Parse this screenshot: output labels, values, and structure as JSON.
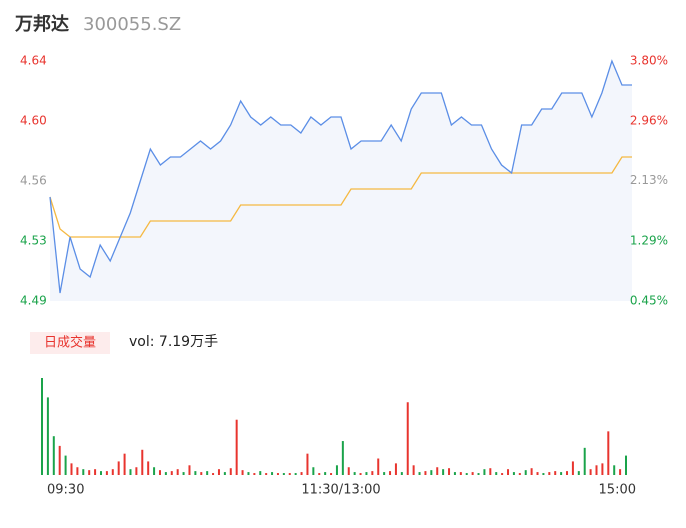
{
  "header": {
    "name": "万邦达",
    "code": "300055.SZ"
  },
  "chart_data": {
    "type": "line",
    "price_values": [
      4.555,
      4.495,
      4.53,
      4.51,
      4.505,
      4.525,
      4.515,
      4.53,
      4.545,
      4.565,
      4.585,
      4.575,
      4.58,
      4.58,
      4.585,
      4.59,
      4.585,
      4.59,
      4.6,
      4.615,
      4.605,
      4.6,
      4.605,
      4.6,
      4.6,
      4.595,
      4.605,
      4.6,
      4.605,
      4.605,
      4.585,
      4.59,
      4.59,
      4.59,
      4.6,
      4.59,
      4.61,
      4.62,
      4.62,
      4.62,
      4.6,
      4.605,
      4.6,
      4.6,
      4.585,
      4.575,
      4.57,
      4.6,
      4.6,
      4.61,
      4.61,
      4.62,
      4.62,
      4.62,
      4.605,
      4.62,
      4.64,
      4.625,
      4.625
    ],
    "avg_values": [
      4.555,
      4.535,
      4.53,
      4.53,
      4.53,
      4.53,
      4.53,
      4.53,
      4.53,
      4.53,
      4.54,
      4.54,
      4.54,
      4.54,
      4.54,
      4.54,
      4.54,
      4.54,
      4.54,
      4.55,
      4.55,
      4.55,
      4.55,
      4.55,
      4.55,
      4.55,
      4.55,
      4.55,
      4.55,
      4.55,
      4.56,
      4.56,
      4.56,
      4.56,
      4.56,
      4.56,
      4.56,
      4.57,
      4.57,
      4.57,
      4.57,
      4.57,
      4.57,
      4.57,
      4.57,
      4.57,
      4.57,
      4.57,
      4.57,
      4.57,
      4.57,
      4.57,
      4.57,
      4.57,
      4.57,
      4.57,
      4.57,
      4.58,
      4.58
    ],
    "price_color": "#5b8ee6",
    "avg_color": "#f5b942",
    "area_color": "#f3f6fc",
    "ylim": [
      4.49,
      4.64
    ],
    "yticks": [
      {
        "value": 4.64,
        "label": "4.64"
      },
      {
        "value": 4.6025,
        "label": "4.60"
      },
      {
        "value": 4.565,
        "label": "4.56"
      },
      {
        "value": 4.5275,
        "label": "4.53"
      },
      {
        "value": 4.49,
        "label": "4.49"
      }
    ],
    "ytick_colors": [
      "#e8342e",
      "#e8342e",
      "#999999",
      "#1aa34a",
      "#1aa34a"
    ],
    "y2lim": [
      0.45,
      3.8
    ],
    "y2ticks": [
      {
        "value": 3.8,
        "label": "3.80%"
      },
      {
        "value": 2.96,
        "label": "2.96%"
      },
      {
        "value": 2.13,
        "label": "2.13%"
      },
      {
        "value": 1.29,
        "label": "1.29%"
      },
      {
        "value": 0.45,
        "label": "0.45%"
      }
    ],
    "xlim": [
      0,
      240
    ],
    "xticks": [
      {
        "value": 0,
        "label": "09:30"
      },
      {
        "value": 120,
        "label": "11:30/13:00"
      },
      {
        "value": 240,
        "label": "15:00"
      }
    ],
    "volume_title": "日成交量",
    "volume_label": "vol: 7.19万手",
    "volume_ylim": [
      0,
      100
    ],
    "volume_values": [
      100,
      80,
      40,
      30,
      20,
      12,
      8,
      6,
      5,
      6,
      4,
      4,
      6,
      14,
      22,
      6,
      8,
      26,
      14,
      8,
      5,
      3,
      4,
      6,
      3,
      10,
      4,
      3,
      4,
      2,
      6,
      3,
      7,
      57,
      5,
      3,
      2,
      4,
      2,
      3,
      2,
      2,
      2,
      2,
      3,
      22,
      8,
      2,
      3,
      2,
      10,
      35,
      8,
      3,
      2,
      3,
      4,
      17,
      3,
      4,
      12,
      3,
      75,
      10,
      3,
      4,
      5,
      8,
      6,
      7,
      3,
      3,
      2,
      3,
      2,
      6,
      7,
      3,
      2,
      6,
      3,
      2,
      5,
      7,
      3,
      2,
      3,
      4,
      3,
      4,
      14,
      4,
      28,
      6,
      10,
      12,
      45,
      10,
      6,
      20
    ],
    "volume_colors": [
      "g",
      "g",
      "g",
      "r",
      "g",
      "r",
      "r",
      "g",
      "r",
      "r",
      "g",
      "r",
      "r",
      "r",
      "r",
      "g",
      "r",
      "r",
      "r",
      "g",
      "r",
      "g",
      "r",
      "r",
      "g",
      "r",
      "g",
      "r",
      "g",
      "r",
      "r",
      "g",
      "r",
      "r",
      "r",
      "g",
      "r",
      "g",
      "r",
      "g",
      "r",
      "g",
      "r",
      "g",
      "r",
      "r",
      "g",
      "r",
      "g",
      "r",
      "g",
      "g",
      "r",
      "g",
      "r",
      "g",
      "r",
      "r",
      "g",
      "r",
      "r",
      "g",
      "r",
      "r",
      "g",
      "r",
      "g",
      "r",
      "g",
      "r",
      "g",
      "r",
      "g",
      "r",
      "g",
      "g",
      "r",
      "g",
      "r",
      "r",
      "g",
      "r",
      "g",
      "r",
      "r",
      "g",
      "r",
      "r",
      "g",
      "r",
      "r",
      "g",
      "g",
      "r",
      "r",
      "r",
      "r",
      "g",
      "r",
      "g"
    ],
    "volume_palette": {
      "r": "#e8342e",
      "g": "#1aa34a"
    }
  }
}
